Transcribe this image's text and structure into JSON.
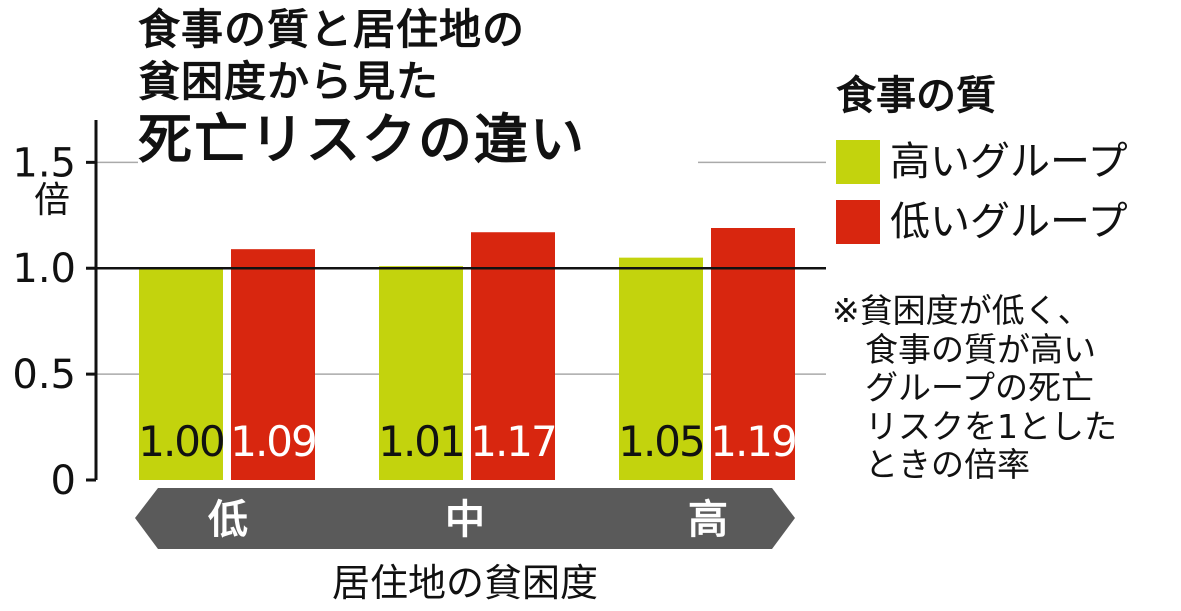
{
  "title": {
    "line1": "食事の質と居住地の",
    "line2": "貧困度から見た",
    "line3": "死亡リスクの違い"
  },
  "legend": {
    "title": "食事の質",
    "items": [
      {
        "label": "高いグループ",
        "color": "#c3d30d"
      },
      {
        "label": "低いグループ",
        "color": "#d8260f"
      }
    ]
  },
  "note": "※貧困度が低く、\n　食事の質が高い\n　グループの死亡\n　リスクを1とした\n　ときの倍率",
  "arrow_color": "#5a5a5a",
  "chart_data": {
    "type": "bar",
    "categories": [
      "低",
      "中",
      "高"
    ],
    "xlabel": "居住地の貧困度",
    "ylabel": "倍",
    "ylim": [
      0,
      1.7
    ],
    "yticks": [
      "0",
      "0.5",
      "1.0",
      "1.5"
    ],
    "reference_line": 1.0,
    "series": [
      {
        "name": "高いグループ",
        "color": "#c3d30d",
        "values": [
          1.0,
          1.01,
          1.05
        ],
        "labels": [
          "1.00",
          "1.01",
          "1.05"
        ]
      },
      {
        "name": "低いグループ",
        "color": "#d8260f",
        "values": [
          1.09,
          1.17,
          1.19
        ],
        "labels": [
          "1.09",
          "1.17",
          "1.19"
        ]
      }
    ]
  }
}
